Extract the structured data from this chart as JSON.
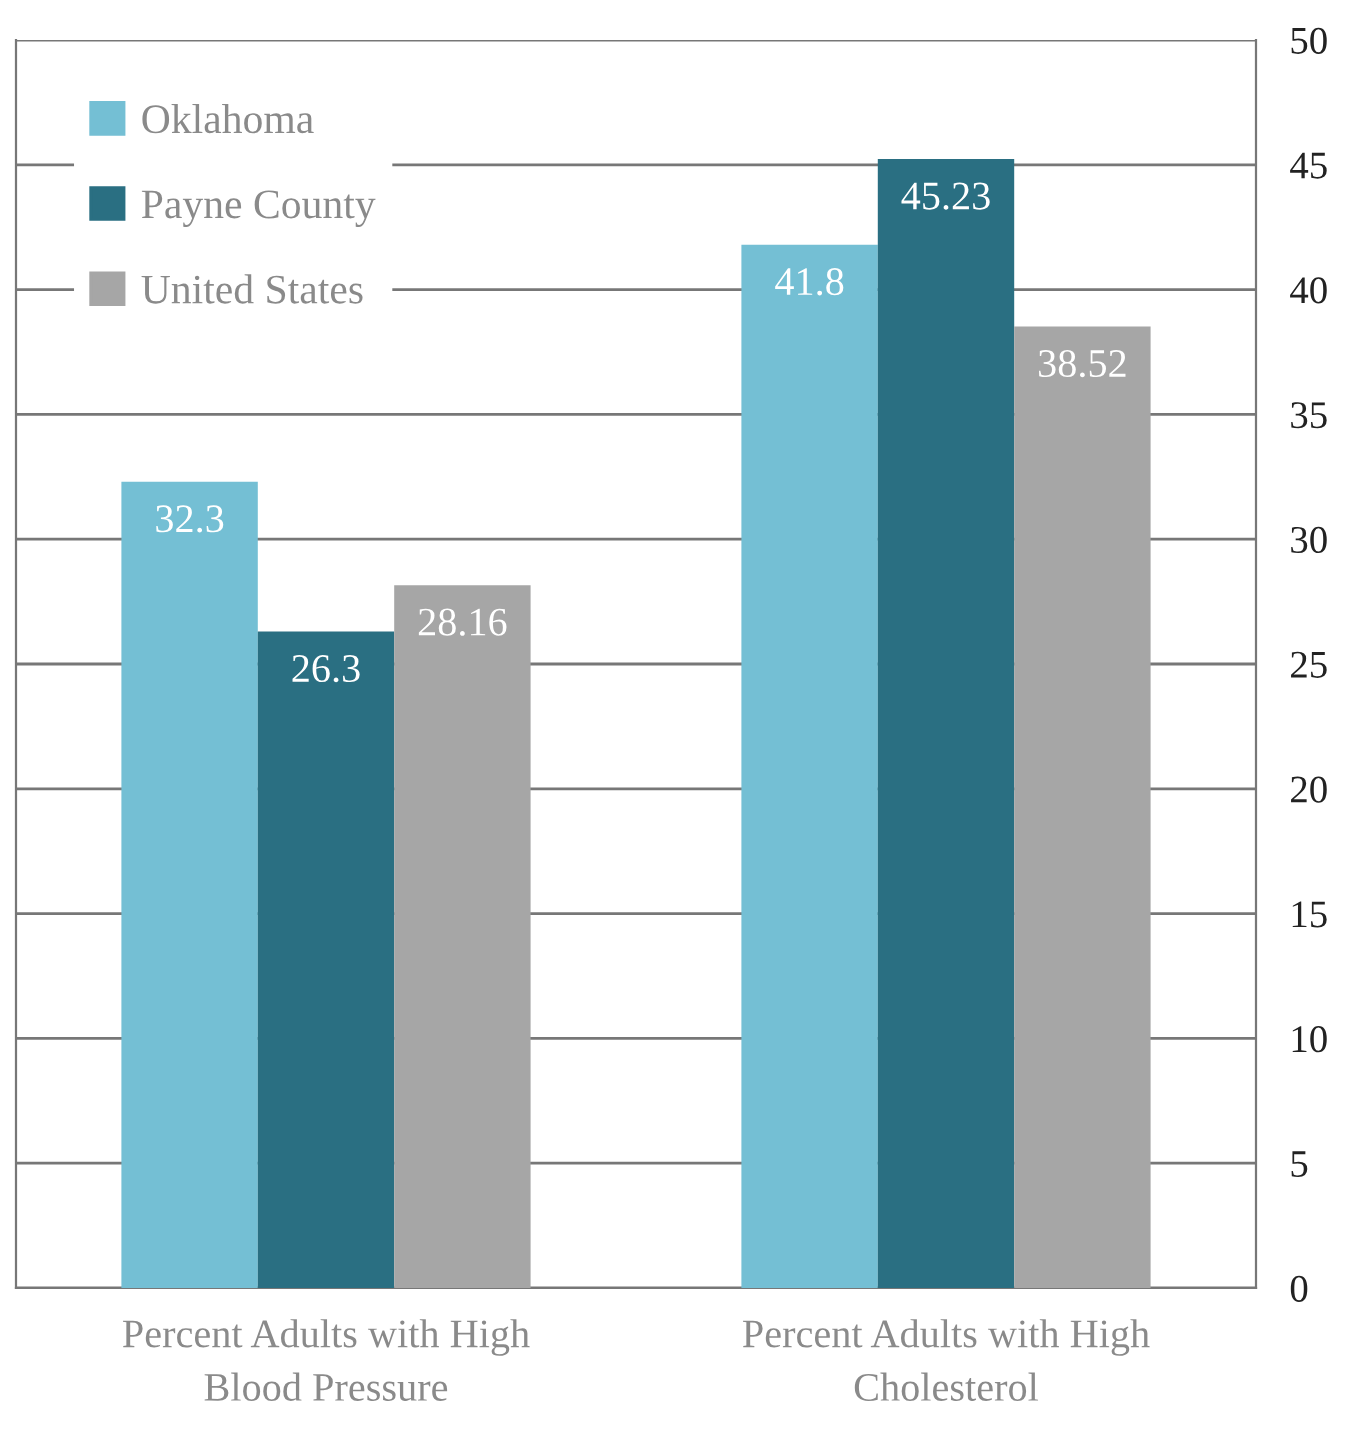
{
  "chart_data": {
    "type": "bar",
    "categories": [
      "Percent Adults with High Blood Pressure",
      "Percent Adults with High Cholesterol"
    ],
    "series": [
      {
        "name": "Oklahoma",
        "color": "#74bfd4",
        "values": [
          32.3,
          41.8
        ]
      },
      {
        "name": "Payne County",
        "color": "#2a6f82",
        "values": [
          26.3,
          45.23
        ]
      },
      {
        "name": "United States",
        "color": "#a6a6a6",
        "values": [
          28.16,
          38.52
        ]
      }
    ],
    "ylim": [
      0,
      50
    ],
    "yticks": [
      0,
      5,
      10,
      15,
      20,
      25,
      30,
      35,
      40,
      45,
      50
    ],
    "grid": "y",
    "legend": "top left",
    "data_labels": true
  }
}
